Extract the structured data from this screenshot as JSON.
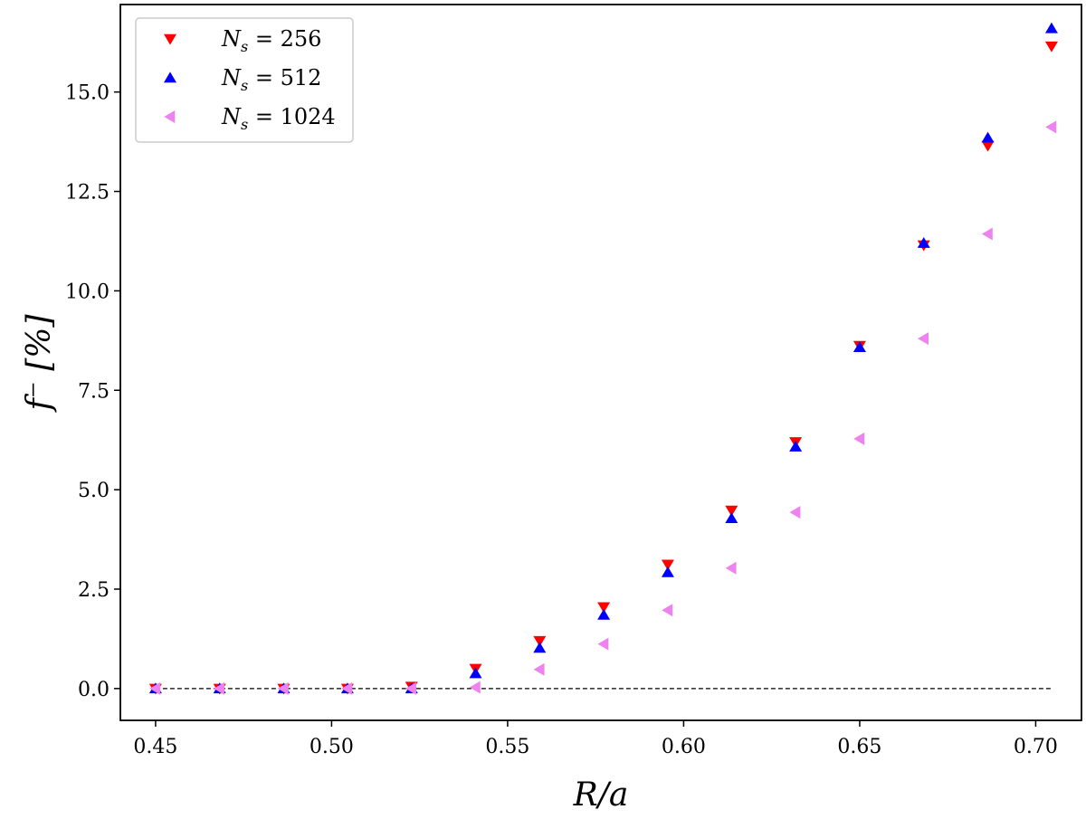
{
  "chart_data": {
    "type": "scatter",
    "title": "",
    "xlabel": "R/a",
    "ylabel": "f⁻ [%]",
    "xlim": [
      0.44,
      0.713
    ],
    "ylim": [
      -0.8,
      17.2
    ],
    "x_ticks": [
      0.45,
      0.5,
      0.55,
      0.6,
      0.65,
      0.7
    ],
    "x_tick_labels": [
      "0.45",
      "0.50",
      "0.55",
      "0.60",
      "0.65",
      "0.70"
    ],
    "y_ticks": [
      0,
      2.5,
      5,
      7.5,
      10,
      12.5,
      15
    ],
    "y_tick_labels": [
      "0.0",
      "2.5",
      "5.0",
      "7.5",
      "10.0",
      "12.5",
      "15.0"
    ],
    "grid": false,
    "legend_position": "top-left",
    "reference_line": {
      "y": 0,
      "style": "dashed",
      "color": "#000000"
    },
    "x": [
      0.45,
      0.4682,
      0.4864,
      0.5045,
      0.5227,
      0.5409,
      0.5591,
      0.5773,
      0.5955,
      0.6136,
      0.6318,
      0.65,
      0.6682,
      0.6864,
      0.7045
    ],
    "series": [
      {
        "name": "N_s = 256",
        "legend_label": "Ns = 256",
        "marker": "triangle-down",
        "color": "#ff0000",
        "values": [
          0.0,
          0.0,
          0.0,
          0.0,
          0.05,
          0.5,
          1.2,
          2.05,
          3.12,
          4.48,
          6.2,
          8.62,
          11.15,
          13.65,
          16.15
        ]
      },
      {
        "name": "N_s = 512",
        "legend_label": "Ns = 512",
        "marker": "triangle-up",
        "color": "#0000ff",
        "values": [
          0.0,
          0.0,
          0.0,
          0.0,
          0.0,
          0.38,
          1.02,
          1.85,
          2.92,
          4.28,
          6.08,
          8.58,
          11.2,
          13.85,
          16.6
        ]
      },
      {
        "name": "N_s = 1024",
        "legend_label": "Ns = 1024",
        "marker": "triangle-left",
        "color": "#ee82ee",
        "values": [
          0.0,
          0.0,
          0.0,
          0.0,
          0.0,
          0.03,
          0.48,
          1.12,
          1.97,
          3.03,
          4.43,
          6.28,
          8.8,
          11.43,
          14.12
        ]
      }
    ]
  }
}
